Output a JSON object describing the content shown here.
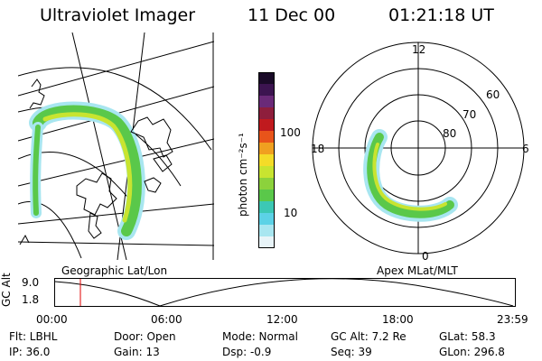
{
  "header": {
    "instrument": "Ultraviolet Imager",
    "date": "11 Dec 00",
    "time": "01:21:18 UT"
  },
  "colorbar": {
    "unit_label": "photon cm⁻²s⁻¹",
    "ticks": [
      "100",
      "10"
    ],
    "colors": [
      "#1a0a28",
      "#3c1450",
      "#6a2a78",
      "#8e1e3c",
      "#c01a1e",
      "#e8541a",
      "#f0a020",
      "#f4dc28",
      "#c8e430",
      "#8cd23c",
      "#5ac84a",
      "#3cc8b4",
      "#5cd2e6",
      "#a8e6f0",
      "#e8f4f8"
    ]
  },
  "left_map": {
    "label": "Geographic Lat/Lon"
  },
  "right_polar": {
    "label": "Apex MLat/MLT",
    "mlt_labels": [
      "12",
      "18",
      "6",
      "0"
    ],
    "lat_labels": [
      "60",
      "70",
      "80"
    ]
  },
  "timeline": {
    "axis_title": "GC Alt",
    "ytick_top": "9.0",
    "ytick_bottom": "1.8",
    "xticks": [
      "00:00",
      "06:00",
      "12:00",
      "18:00",
      "23:59"
    ]
  },
  "footer": {
    "flt": "Flt: LBHL",
    "door": "Door: Open",
    "mode": "Mode: Normal",
    "gc_alt": "GC Alt: 7.2 Re",
    "glat": "GLat: 58.3",
    "ip": "IP: 36.0",
    "gain": "Gain: 13",
    "dsp": "Dsp:  -0.9",
    "seq": "Seq: 39",
    "glon": "GLon: 296.8"
  }
}
